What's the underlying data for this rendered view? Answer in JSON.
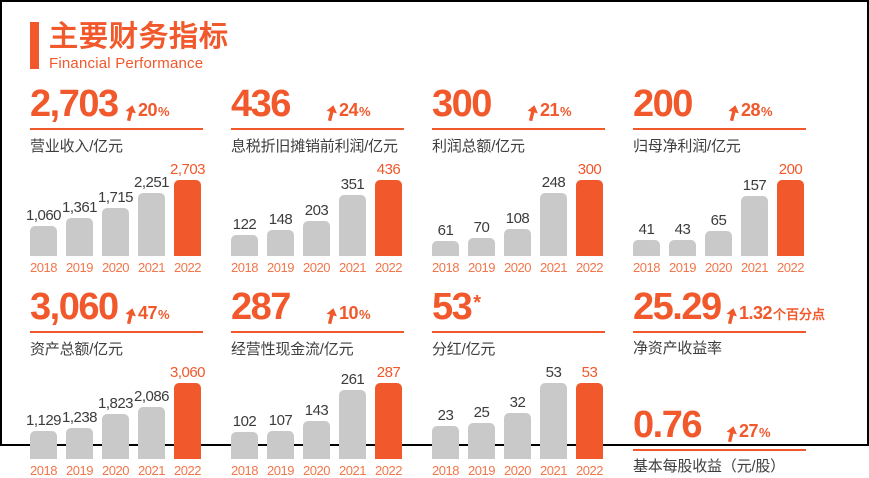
{
  "header": {
    "title": "主要财务指标",
    "subtitle": "Financial Performance"
  },
  "colors": {
    "accent": "#F1582B",
    "bar_gray": "#C9C9C9",
    "bar_highlight": "#F1582B",
    "year_label": "#F1764A",
    "value_label": "#3C3C3C",
    "frame_border": "#000000"
  },
  "chart_data": [
    {
      "type": "bar",
      "headline": "2,703",
      "change_value": "20",
      "change_unit": "%",
      "title": "营业收入/亿元",
      "categories": [
        "2018",
        "2019",
        "2020",
        "2021",
        "2022"
      ],
      "values": [
        1060,
        1361,
        1715,
        2251,
        2703
      ],
      "value_labels": [
        "1,060",
        "1,361",
        "1,715",
        "2,251",
        "2,703"
      ],
      "highlight_category": "2022",
      "ylim": [
        0,
        2703
      ],
      "grid": false,
      "legend": "none"
    },
    {
      "type": "bar",
      "headline": "436",
      "change_value": "24",
      "change_unit": "%",
      "title": "息税折旧摊销前利润/亿元",
      "categories": [
        "2018",
        "2019",
        "2020",
        "2021",
        "2022"
      ],
      "values": [
        122,
        148,
        203,
        351,
        436
      ],
      "value_labels": [
        "122",
        "148",
        "203",
        "351",
        "436"
      ],
      "highlight_category": "2022",
      "ylim": [
        0,
        436
      ],
      "grid": false,
      "legend": "none"
    },
    {
      "type": "bar",
      "headline": "300",
      "change_value": "21",
      "change_unit": "%",
      "title": "利润总额/亿元",
      "categories": [
        "2018",
        "2019",
        "2020",
        "2021",
        "2022"
      ],
      "values": [
        61,
        70,
        108,
        248,
        300
      ],
      "value_labels": [
        "61",
        "70",
        "108",
        "248",
        "300"
      ],
      "highlight_category": "2022",
      "ylim": [
        0,
        300
      ],
      "grid": false,
      "legend": "none"
    },
    {
      "type": "bar",
      "headline": "200",
      "change_value": "28",
      "change_unit": "%",
      "title": "归母净利润/亿元",
      "categories": [
        "2018",
        "2019",
        "2020",
        "2021",
        "2022"
      ],
      "values": [
        41,
        43,
        65,
        157,
        200
      ],
      "value_labels": [
        "41",
        "43",
        "65",
        "157",
        "200"
      ],
      "highlight_category": "2022",
      "ylim": [
        0,
        200
      ],
      "grid": false,
      "legend": "none"
    },
    {
      "type": "bar",
      "headline": "3,060",
      "change_value": "47",
      "change_unit": "%",
      "title": "资产总额/亿元",
      "categories": [
        "2018",
        "2019",
        "2020",
        "2021",
        "2022"
      ],
      "values": [
        1129,
        1238,
        1823,
        2086,
        3060
      ],
      "value_labels": [
        "1,129",
        "1,238",
        "1,823",
        "2,086",
        "3,060"
      ],
      "highlight_category": "2022",
      "ylim": [
        0,
        3060
      ],
      "grid": false,
      "legend": "none"
    },
    {
      "type": "bar",
      "headline": "287",
      "change_value": "10",
      "change_unit": "%",
      "title": "经营性现金流/亿元",
      "categories": [
        "2018",
        "2019",
        "2020",
        "2021",
        "2022"
      ],
      "values": [
        102,
        107,
        143,
        261,
        287
      ],
      "value_labels": [
        "102",
        "107",
        "143",
        "261",
        "287"
      ],
      "highlight_category": "2022",
      "ylim": [
        0,
        287
      ],
      "grid": false,
      "legend": "none"
    },
    {
      "type": "bar",
      "headline": "53",
      "suffix": "*",
      "change_value": null,
      "change_unit": null,
      "title": "分红/亿元",
      "categories": [
        "2018",
        "2019",
        "2020",
        "2021",
        "2022"
      ],
      "values": [
        23,
        25,
        32,
        53,
        53
      ],
      "value_labels": [
        "23",
        "25",
        "32",
        "53",
        "53"
      ],
      "highlight_category": "2022",
      "ylim": [
        0,
        53
      ],
      "grid": false,
      "legend": "none"
    }
  ],
  "stats": [
    {
      "value": "25.29",
      "change_value": "1.32",
      "change_unit": "个百分点",
      "label": "净资产收益率"
    },
    {
      "value": "0.76",
      "change_value": "27",
      "change_unit": "%",
      "label": "基本每股收益（元/股）"
    }
  ]
}
